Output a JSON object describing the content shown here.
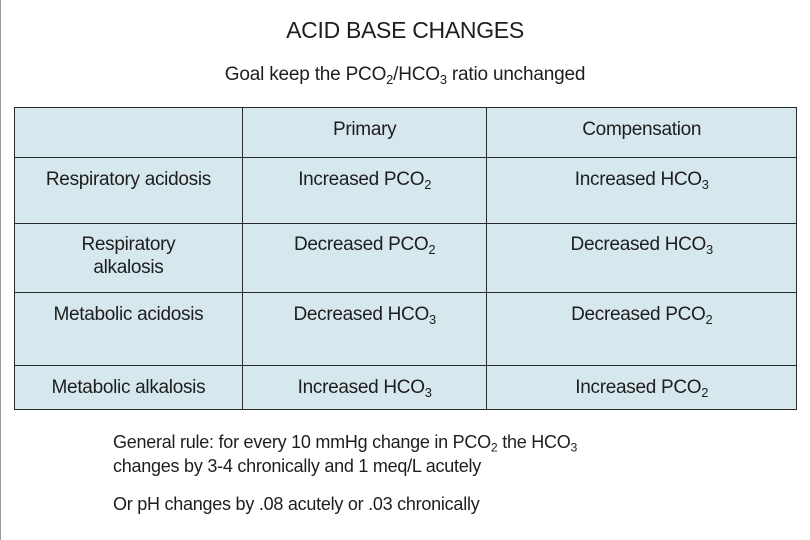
{
  "title": "ACID BASE CHANGES",
  "subtitle": {
    "pre": "Goal keep the PCO",
    "s1": "2",
    "mid": "/HCO",
    "s2": "3",
    "post": " ratio unchanged"
  },
  "table": {
    "headers": [
      "",
      "Primary",
      "Compensation"
    ],
    "rows": [
      {
        "condition": "Respiratory acidosis",
        "primary": {
          "text": "Increased PCO",
          "sub": "2"
        },
        "compensation": {
          "text": "Increased HCO",
          "sub": "3"
        }
      },
      {
        "condition": "Respiratory alkalosis",
        "primary": {
          "text": "Decreased PCO",
          "sub": "2"
        },
        "compensation": {
          "text": "Decreased HCO",
          "sub": "3"
        }
      },
      {
        "condition": "Metabolic acidosis",
        "primary": {
          "text": "Decreased HCO",
          "sub": "3"
        },
        "compensation": {
          "text": "Decreased PCO",
          "sub": "2"
        }
      },
      {
        "condition": "Metabolic alkalosis",
        "primary": {
          "text": "Increased HCO",
          "sub": "3"
        },
        "compensation": {
          "text": "Increased PCO",
          "sub": "2"
        }
      }
    ]
  },
  "notes": {
    "rule_a": "General rule: for every 10 mmHg change in PCO",
    "rule_a_sub": "2",
    "rule_b": " the HCO",
    "rule_b_sub": "3",
    "rule_line2": "changes by 3-4 chronically and 1 meq/L acutely",
    "ph": "Or pH changes by .08 acutely or .03 chronically"
  },
  "colors": {
    "table_fill": "#d6e8ed",
    "border": "#2a2a2a"
  }
}
